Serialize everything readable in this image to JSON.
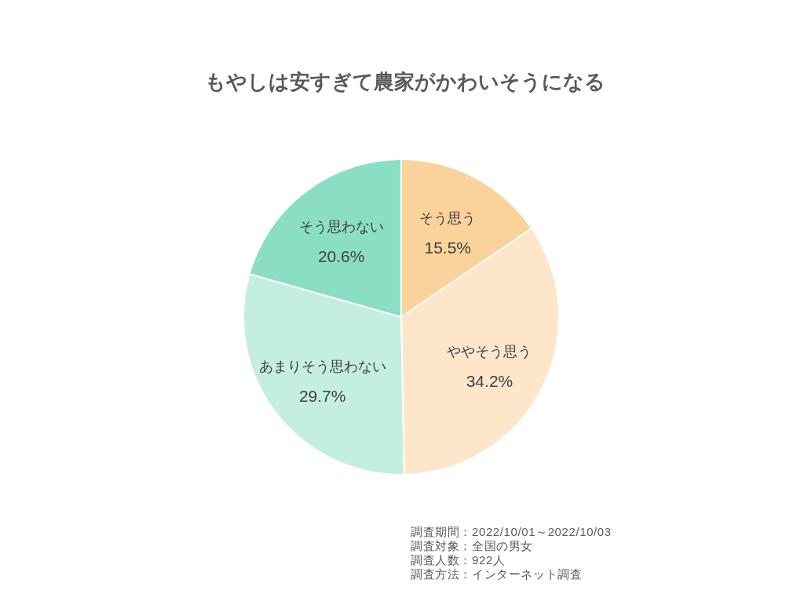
{
  "chart_data": {
    "type": "pie",
    "title": "もやしは安すぎて農家がかわいそうになる",
    "categories": [
      "そう思う",
      "ややそう思う",
      "あまりそう思わない",
      "そう思わない"
    ],
    "values": [
      15.5,
      34.2,
      29.7,
      20.6
    ],
    "value_labels": [
      "15.5%",
      "34.2%",
      "29.7%",
      "20.6%"
    ],
    "colors": [
      "#f9d39b",
      "#fde6c9",
      "#c4eedf",
      "#8adec4"
    ],
    "annotations": [
      "調査期間：2022/10/01～2022/10/03",
      "調査対象：全国の男女",
      "調査人数：922人",
      "調査方法：インターネット調査"
    ]
  }
}
